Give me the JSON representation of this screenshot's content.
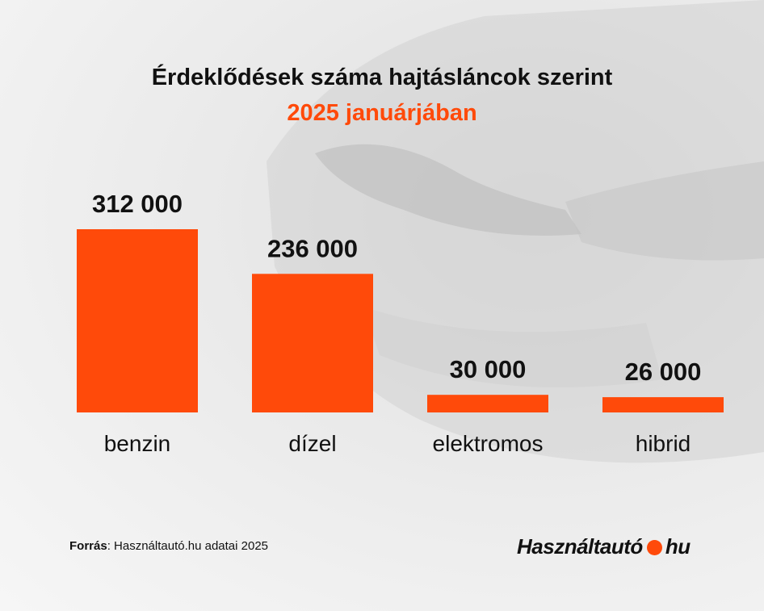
{
  "title": "Érdeklődések száma hajtásláncok szerint",
  "subtitle": "2025 januárjában",
  "colors": {
    "accent": "#FF4A0A",
    "text": "#111111"
  },
  "chart_data": {
    "type": "bar",
    "categories": [
      "benzin",
      "dízel",
      "elektromos",
      "hibrid"
    ],
    "values": [
      312000,
      236000,
      30000,
      26000
    ],
    "value_labels": [
      "312 000",
      "236 000",
      "30 000",
      "26 000"
    ],
    "title": "Érdeklődések száma hajtásláncok szerint",
    "subtitle": "2025 januárjában",
    "xlabel": "",
    "ylabel": "",
    "ylim": [
      0,
      312000
    ],
    "grid": false,
    "legend": "none"
  },
  "footer": {
    "source_label": "Forrás",
    "source_text": ": Használtautó.hu adatai 2025"
  },
  "logo": {
    "name": "Használtautó",
    "suffix": "hu"
  }
}
